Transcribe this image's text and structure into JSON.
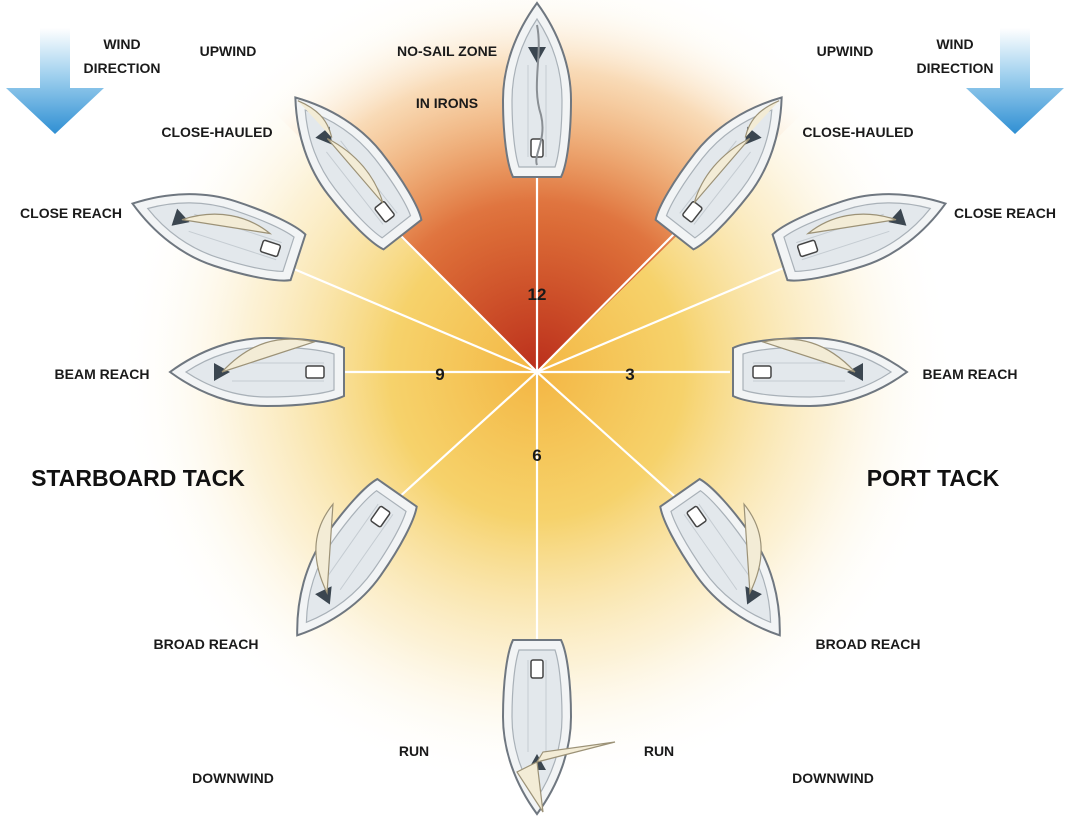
{
  "wind": {
    "line1": "WIND",
    "line2": "DIRECTION"
  },
  "zones": {
    "upwind": "UPWIND",
    "downwind": "DOWNWIND",
    "no_sail": "NO-SAIL ZONE",
    "in_irons": "IN IRONS"
  },
  "points_of_sail": {
    "close_hauled": "CLOSE-HAULED",
    "close_reach": "CLOSE REACH",
    "beam_reach": "BEAM REACH",
    "broad_reach": "BROAD REACH",
    "run": "RUN"
  },
  "tacks": {
    "starboard": "STARBOARD TACK",
    "port": "PORT TACK"
  },
  "clock": {
    "twelve": "12",
    "three": "3",
    "six": "6",
    "nine": "9"
  },
  "colors": {
    "arrow": "#3a9ad9",
    "no_sail_red": "#c8381e",
    "glow_orange": "#f08a2e",
    "glow_yellow": "#f3c33a",
    "spoke": "#ffffff",
    "hull": "#f2f4f5",
    "sail": "#f3ecd6"
  }
}
